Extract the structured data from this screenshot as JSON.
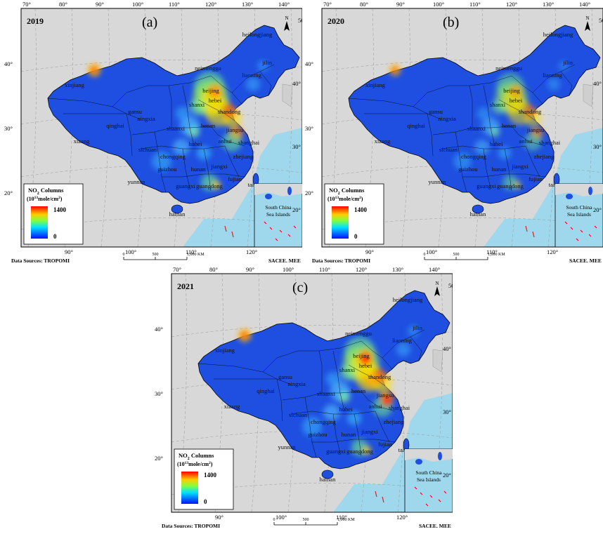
{
  "figure": {
    "panels": [
      {
        "id": "a",
        "letter": "(a)",
        "year": "2019",
        "lat_ticks": [
          "40°",
          "30°",
          "20°"
        ],
        "lon_ticks_top": [
          "70°",
          "80°",
          "90°",
          "100°",
          "110°",
          "120°",
          "130°",
          "140°"
        ],
        "lon_ticks_bottom": [
          "90°",
          "100°",
          "110°",
          "120°"
        ],
        "lat_ticks_right": [
          "50°",
          "40°",
          "30°",
          "20°"
        ]
      },
      {
        "id": "b",
        "letter": "(b)",
        "year": "2020",
        "lat_ticks": [
          "40°",
          "30°",
          "20°"
        ],
        "lon_ticks_top": [
          "70°",
          "80°",
          "90°",
          "100°",
          "110°",
          "120°",
          "130°",
          "140°"
        ],
        "lon_ticks_bottom": [
          "90°",
          "100°",
          "110°",
          "120°"
        ],
        "lat_ticks_right": [
          "50°",
          "40°",
          "30°",
          "20°"
        ]
      },
      {
        "id": "c",
        "letter": "(c)",
        "year": "2021",
        "lat_ticks": [
          "40°",
          "30°",
          "20°"
        ],
        "lon_ticks_top": [
          "70°",
          "80°",
          "90°",
          "100°",
          "110°",
          "120°",
          "130°",
          "140°"
        ],
        "lon_ticks_bottom": [
          "90°",
          "100°",
          "110°",
          "120°"
        ],
        "lat_ticks_right": [
          "50°",
          "40°",
          "30°",
          "20°"
        ]
      }
    ],
    "legend": {
      "title_line1": "NO",
      "title_sub": "2",
      "title_rest": " Columns",
      "unit_prefix": "(10",
      "unit_sup": "13",
      "unit_mid": "mole/cm",
      "unit_sup2": "2",
      "unit_end": ")",
      "max": "1400",
      "min": "0"
    },
    "north_label": "N",
    "inset_label_line1": "South China",
    "inset_label_line2": "Sea Islands",
    "scale": {
      "ticks": [
        "0",
        "500",
        "1,000 KM"
      ]
    },
    "data_sources": "Data Sources:  TROPOMI",
    "publisher": "SACEE. MEE",
    "provinces": [
      "xinjiang",
      "xizang",
      "qinghai",
      "gansu",
      "ningxia",
      "neimenggu",
      "heilongjiang",
      "jilin",
      "liaoning",
      "beijing",
      "hebei",
      "shanxi",
      "shandong",
      "shaanxi",
      "henan",
      "jiangsu",
      "anhui",
      "shanghai",
      "hubei",
      "sichuan",
      "chongqing",
      "guizhou",
      "hunan",
      "jiangxi",
      "zhejiang",
      "fujian",
      "yunnan",
      "guangxi",
      "guangdong",
      "taiwan",
      "hainan"
    ],
    "colors": {
      "ocean": "#9fd8ec",
      "land_outside": "#d8d8d8",
      "china_base": "#1e4fe0",
      "high": "#e81a0c",
      "legend_top": "#ff0000",
      "legend_bottom": "#0000ff"
    }
  }
}
